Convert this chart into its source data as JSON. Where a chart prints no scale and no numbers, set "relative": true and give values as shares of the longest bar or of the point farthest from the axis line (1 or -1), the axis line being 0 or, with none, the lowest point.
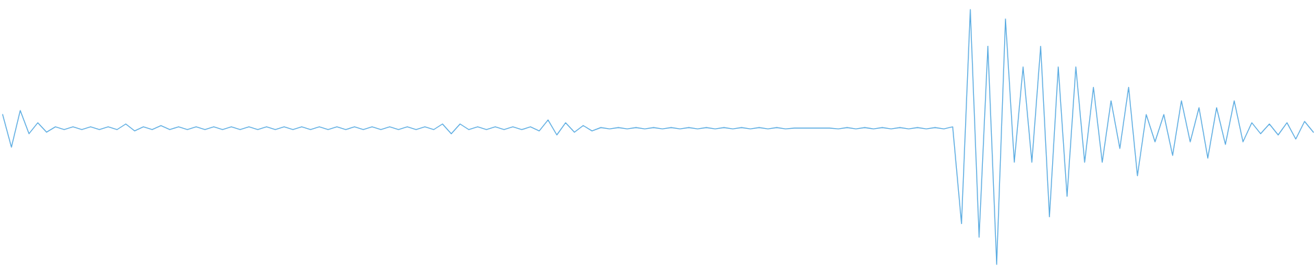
{
  "chart_data": {
    "type": "line",
    "relative": true,
    "line_style": "solid",
    "categories": [
      null,
      null,
      null,
      null,
      null,
      null,
      null,
      null,
      null,
      null,
      null,
      null,
      null,
      null,
      null,
      null,
      null,
      null,
      null,
      null,
      null,
      null,
      null,
      null,
      null,
      null,
      null,
      null,
      null,
      null,
      null,
      null,
      null,
      null,
      null,
      null,
      null,
      null,
      null,
      null,
      null,
      null,
      null,
      null,
      null,
      null,
      null,
      null,
      null,
      null,
      null,
      null,
      null,
      null,
      null,
      null,
      null,
      null,
      null,
      null,
      null,
      null,
      null,
      null,
      null,
      null,
      null,
      null,
      null,
      null,
      null,
      null,
      null,
      null,
      null,
      null,
      null,
      null,
      null,
      null,
      null,
      null,
      null,
      null,
      null,
      null,
      null,
      null,
      null,
      null,
      null,
      null,
      null,
      null,
      null,
      null,
      null,
      null,
      null,
      null,
      null,
      null,
      null,
      null,
      null,
      null,
      null,
      null,
      null,
      null,
      null,
      null,
      null,
      null,
      null,
      null,
      null,
      null,
      null,
      null,
      null,
      null,
      null,
      null,
      null,
      null,
      null,
      null,
      null,
      null,
      null,
      null,
      null,
      null,
      null,
      null,
      null,
      null,
      null,
      null,
      null,
      null,
      null,
      null,
      null,
      null,
      null,
      null,
      null,
      null
    ],
    "series": [
      {
        "color": "#5dade2",
        "values": [
          0.588,
          0.46,
          0.604,
          0.513,
          0.556,
          0.519,
          0.54,
          0.529,
          0.54,
          0.529,
          0.54,
          0.529,
          0.54,
          0.529,
          0.551,
          0.524,
          0.54,
          0.529,
          0.545,
          0.529,
          0.54,
          0.529,
          0.54,
          0.529,
          0.54,
          0.529,
          0.54,
          0.529,
          0.54,
          0.529,
          0.54,
          0.529,
          0.54,
          0.529,
          0.54,
          0.529,
          0.54,
          0.529,
          0.54,
          0.529,
          0.54,
          0.529,
          0.54,
          0.529,
          0.54,
          0.529,
          0.54,
          0.529,
          0.54,
          0.529,
          0.551,
          0.513,
          0.551,
          0.529,
          0.54,
          0.529,
          0.54,
          0.529,
          0.54,
          0.529,
          0.54,
          0.524,
          0.567,
          0.508,
          0.556,
          0.519,
          0.545,
          0.524,
          0.537,
          0.532,
          0.537,
          0.532,
          0.537,
          0.532,
          0.537,
          0.532,
          0.537,
          0.532,
          0.537,
          0.532,
          0.537,
          0.532,
          0.537,
          0.532,
          0.537,
          0.532,
          0.537,
          0.532,
          0.537,
          0.532,
          0.535,
          0.535,
          0.535,
          0.535,
          0.535,
          0.532,
          0.537,
          0.532,
          0.537,
          0.532,
          0.537,
          0.532,
          0.537,
          0.532,
          0.537,
          0.532,
          0.537,
          0.532,
          0.54,
          0.16,
          1.0,
          0.107,
          0.856,
          0,
          0.963,
          0.401,
          0.775,
          0.401,
          0.856,
          0.187,
          0.775,
          0.267,
          0.775,
          0.401,
          0.695,
          0.401,
          0.642,
          0.455,
          0.695,
          0.348,
          0.588,
          0.481,
          0.588,
          0.428,
          0.642,
          0.481,
          0.615,
          0.417,
          0.615,
          0.471,
          0.642,
          0.481,
          0.556,
          0.513,
          0.551,
          0.508,
          0.556,
          0.492,
          0.561,
          0.519
        ]
      }
    ]
  }
}
